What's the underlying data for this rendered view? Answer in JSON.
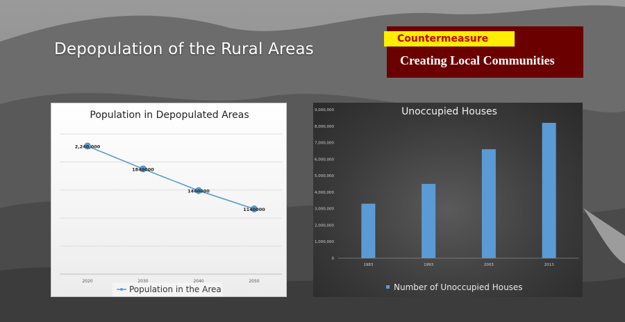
{
  "slide": {
    "title": "Depopulation of the Rural Areas",
    "countermeasure_label": "Countermeasure",
    "countermeasure_text": "Creating Local Communities"
  },
  "colors": {
    "counter_box": "#6b0000",
    "counter_label_bg": "#ffee00",
    "counter_label_text": "#c00000",
    "line_series": "#5b9bd5",
    "bar_series": "#5b9bd5"
  },
  "chart_data": [
    {
      "type": "line",
      "title": "Population in Depopulated Areas",
      "categories": [
        "2020",
        "2030",
        "2040",
        "2050"
      ],
      "series": [
        {
          "name": "Population in the Area",
          "values": [
            2240000,
            1840000,
            1460000,
            1140000
          ],
          "labels": [
            "2,240,000",
            "1840000",
            "1460000",
            "1140000"
          ]
        }
      ],
      "ylim": [
        0,
        2500000
      ],
      "grid": true,
      "legend": "bottom"
    },
    {
      "type": "bar",
      "title": "Unoccupied Houses",
      "categories": [
        "1983",
        "1993",
        "2003",
        "2013"
      ],
      "series": [
        {
          "name": "Number of Unoccupied Houses",
          "values": [
            3300000,
            4500000,
            6600000,
            8200000
          ]
        }
      ],
      "ylim": [
        0,
        9000000
      ],
      "yticks": [
        0,
        1000000,
        2000000,
        3000000,
        4000000,
        5000000,
        6000000,
        7000000,
        8000000,
        9000000
      ],
      "ytick_labels": [
        "0",
        "1,000,000",
        "2,000,000",
        "3,000,000",
        "4,000,000",
        "5,000,000",
        "6,000,000",
        "7,000,000",
        "8,000,000",
        "9,000,000"
      ],
      "grid": false,
      "legend": "bottom"
    }
  ]
}
